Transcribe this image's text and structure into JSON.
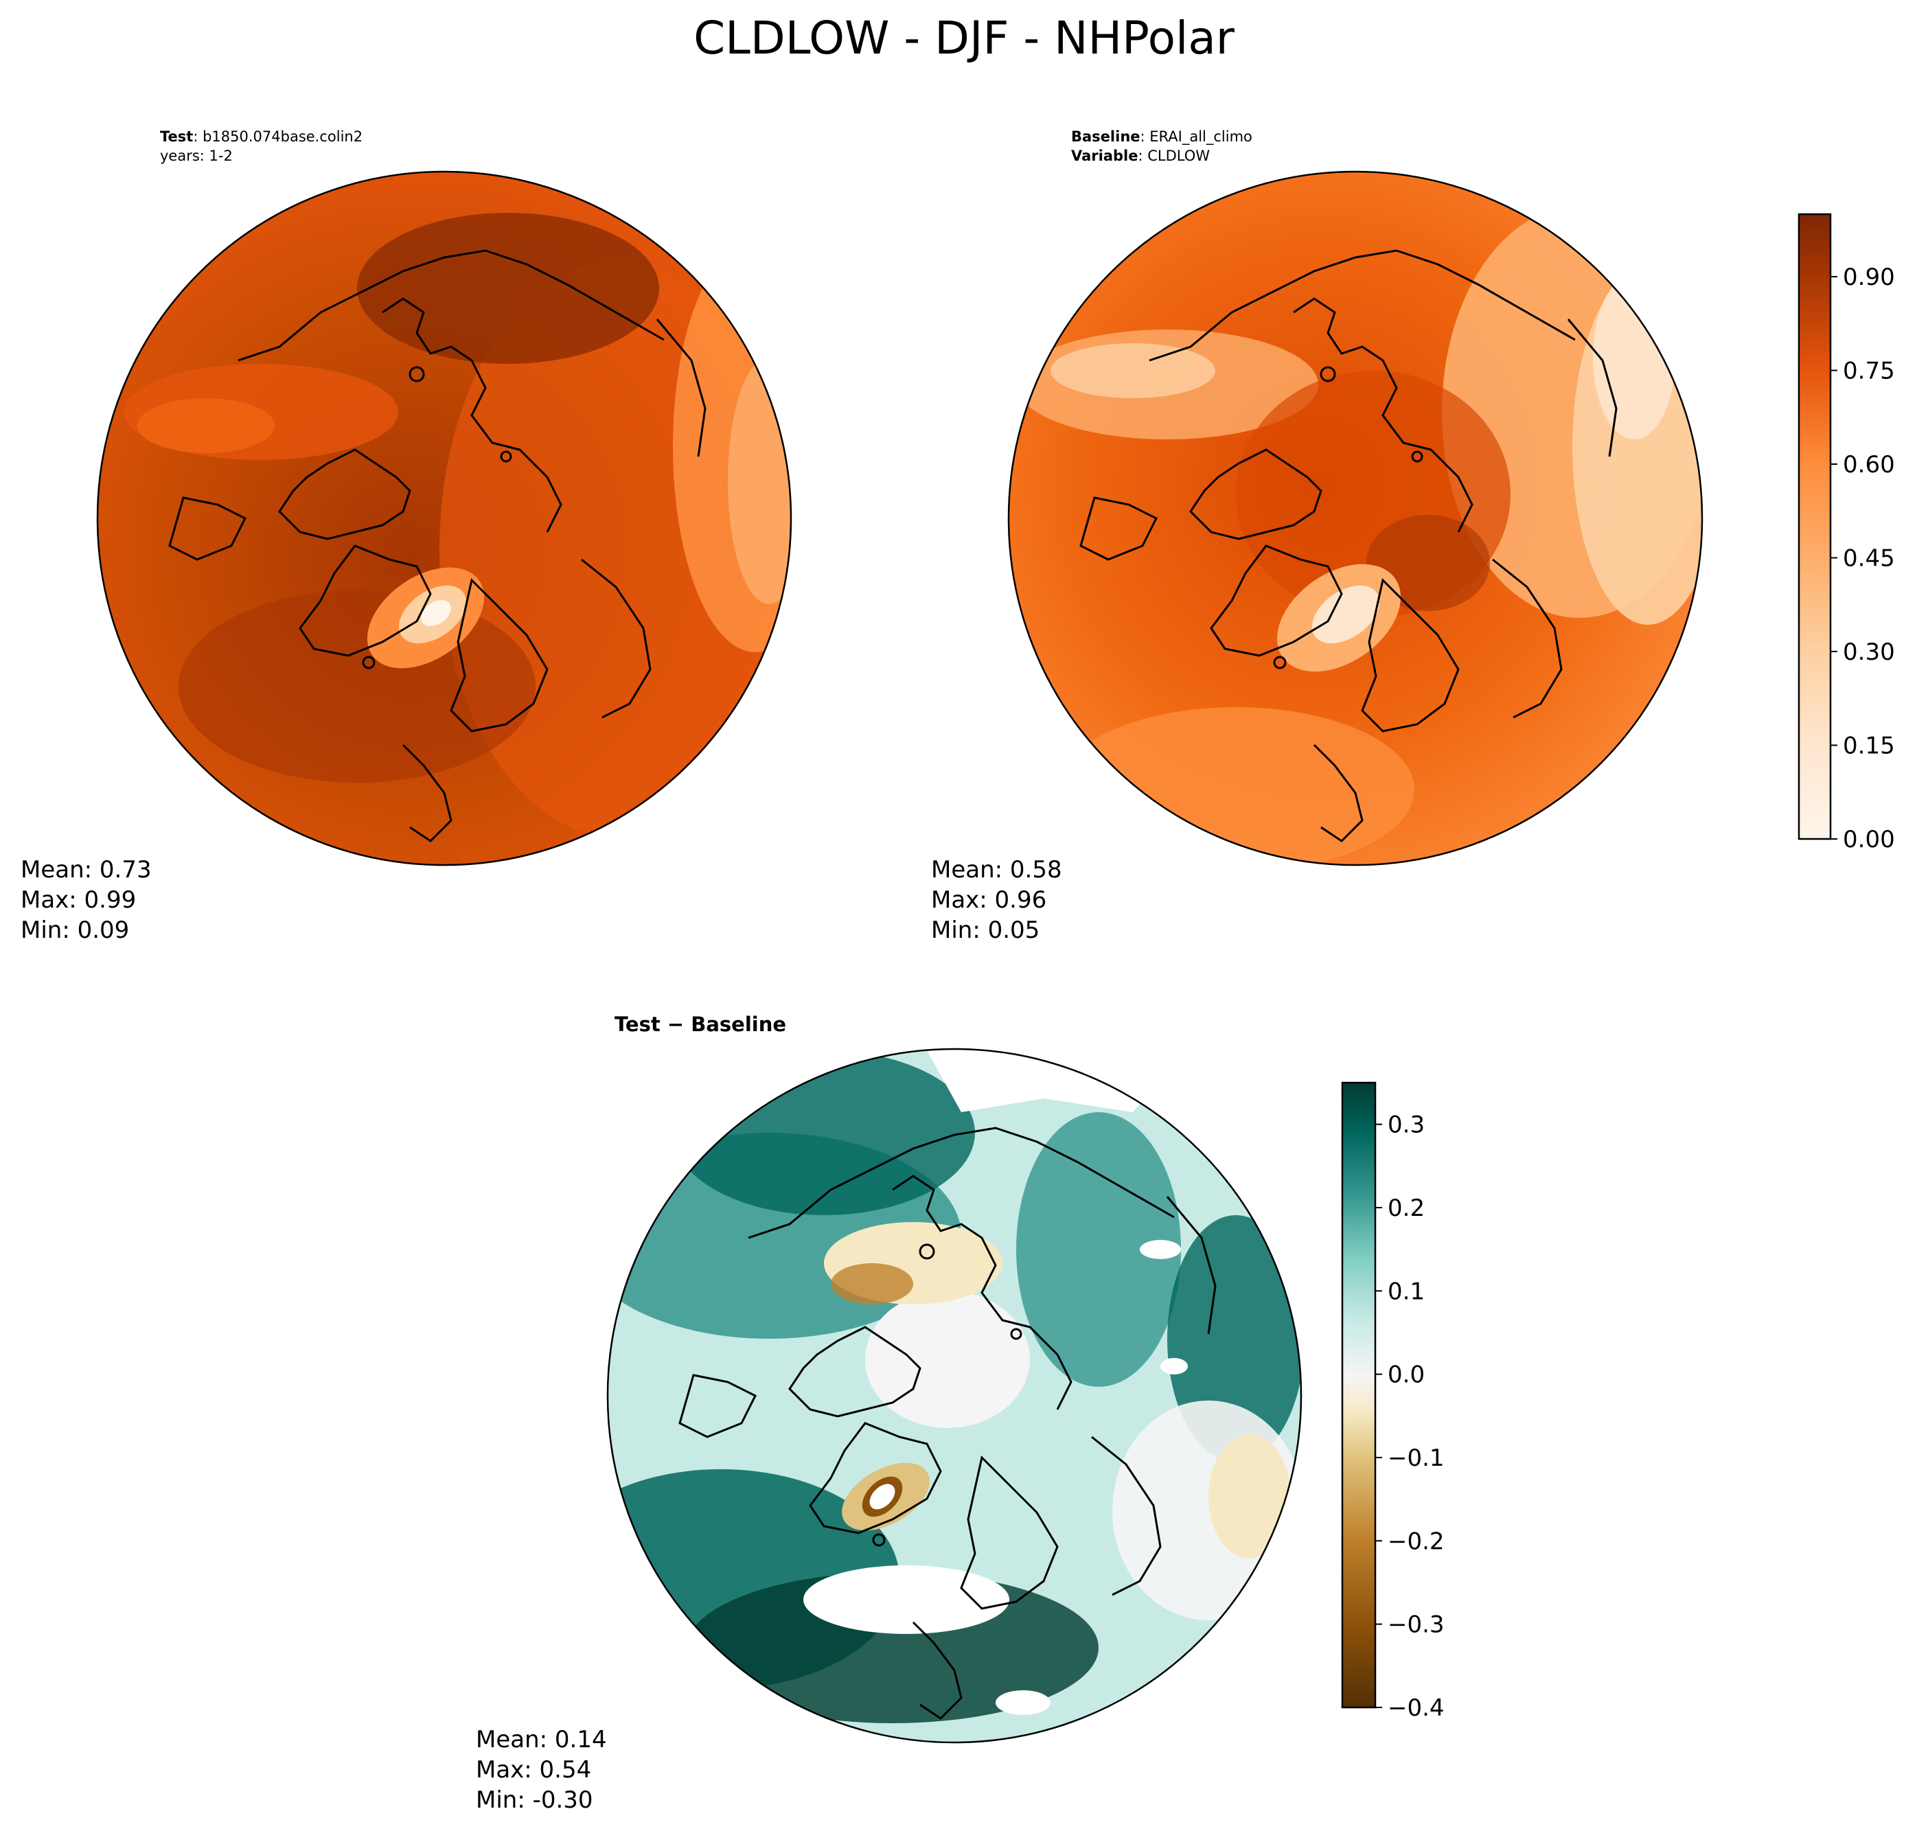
{
  "title": "CLDLOW - DJF - NHPolar",
  "test_panel": {
    "label": "Test",
    "name": "b1850.074base.colin2",
    "years": "years: 1-2",
    "stats": {
      "mean": "Mean:  0.73",
      "max": "Max:  0.99",
      "min": "Min:  0.09"
    }
  },
  "baseline_panel": {
    "label": "Baseline",
    "name": "ERAI_all_climo",
    "variable_label": "Variable",
    "variable": "CLDLOW",
    "stats": {
      "mean": "Mean:  0.58",
      "max": "Max:  0.96",
      "min": "Min:  0.05"
    }
  },
  "diff_panel": {
    "label": "Test − Baseline",
    "stats": {
      "mean": "Mean:  0.14",
      "max": "Max:  0.54",
      "min": "Min: -0.30"
    }
  },
  "colorbar_seq": {
    "ticks": [
      "0.00",
      "0.15",
      "0.30",
      "0.45",
      "0.60",
      "0.75",
      "0.90"
    ],
    "tick_values": [
      0.0,
      0.15,
      0.3,
      0.45,
      0.6,
      0.75,
      0.9
    ],
    "range": [
      0.0,
      1.0
    ],
    "levels": 20,
    "colors": [
      "#fff5eb",
      "#fee9d4",
      "#fdd9b3",
      "#fdc28c",
      "#fda863",
      "#fd8d3c",
      "#f16913",
      "#e05a08",
      "#c94c03",
      "#a63603",
      "#8c2d04",
      "#7f2704"
    ]
  },
  "colorbar_div": {
    "ticks": [
      "0.3",
      "0.2",
      "0.1",
      "0.0",
      "−0.1",
      "−0.2",
      "−0.3",
      "−0.4"
    ],
    "tick_values": [
      0.3,
      0.2,
      0.1,
      0.0,
      -0.1,
      -0.2,
      -0.3,
      -0.4
    ],
    "range": [
      -0.4,
      0.35
    ],
    "levels": 15,
    "colors": [
      "#543005",
      "#8c510a",
      "#bf812d",
      "#dfc27d",
      "#f6e8c3",
      "#f5f5f5",
      "#c7eae5",
      "#80cdc1",
      "#35978f",
      "#01665e",
      "#003c30"
    ]
  }
}
